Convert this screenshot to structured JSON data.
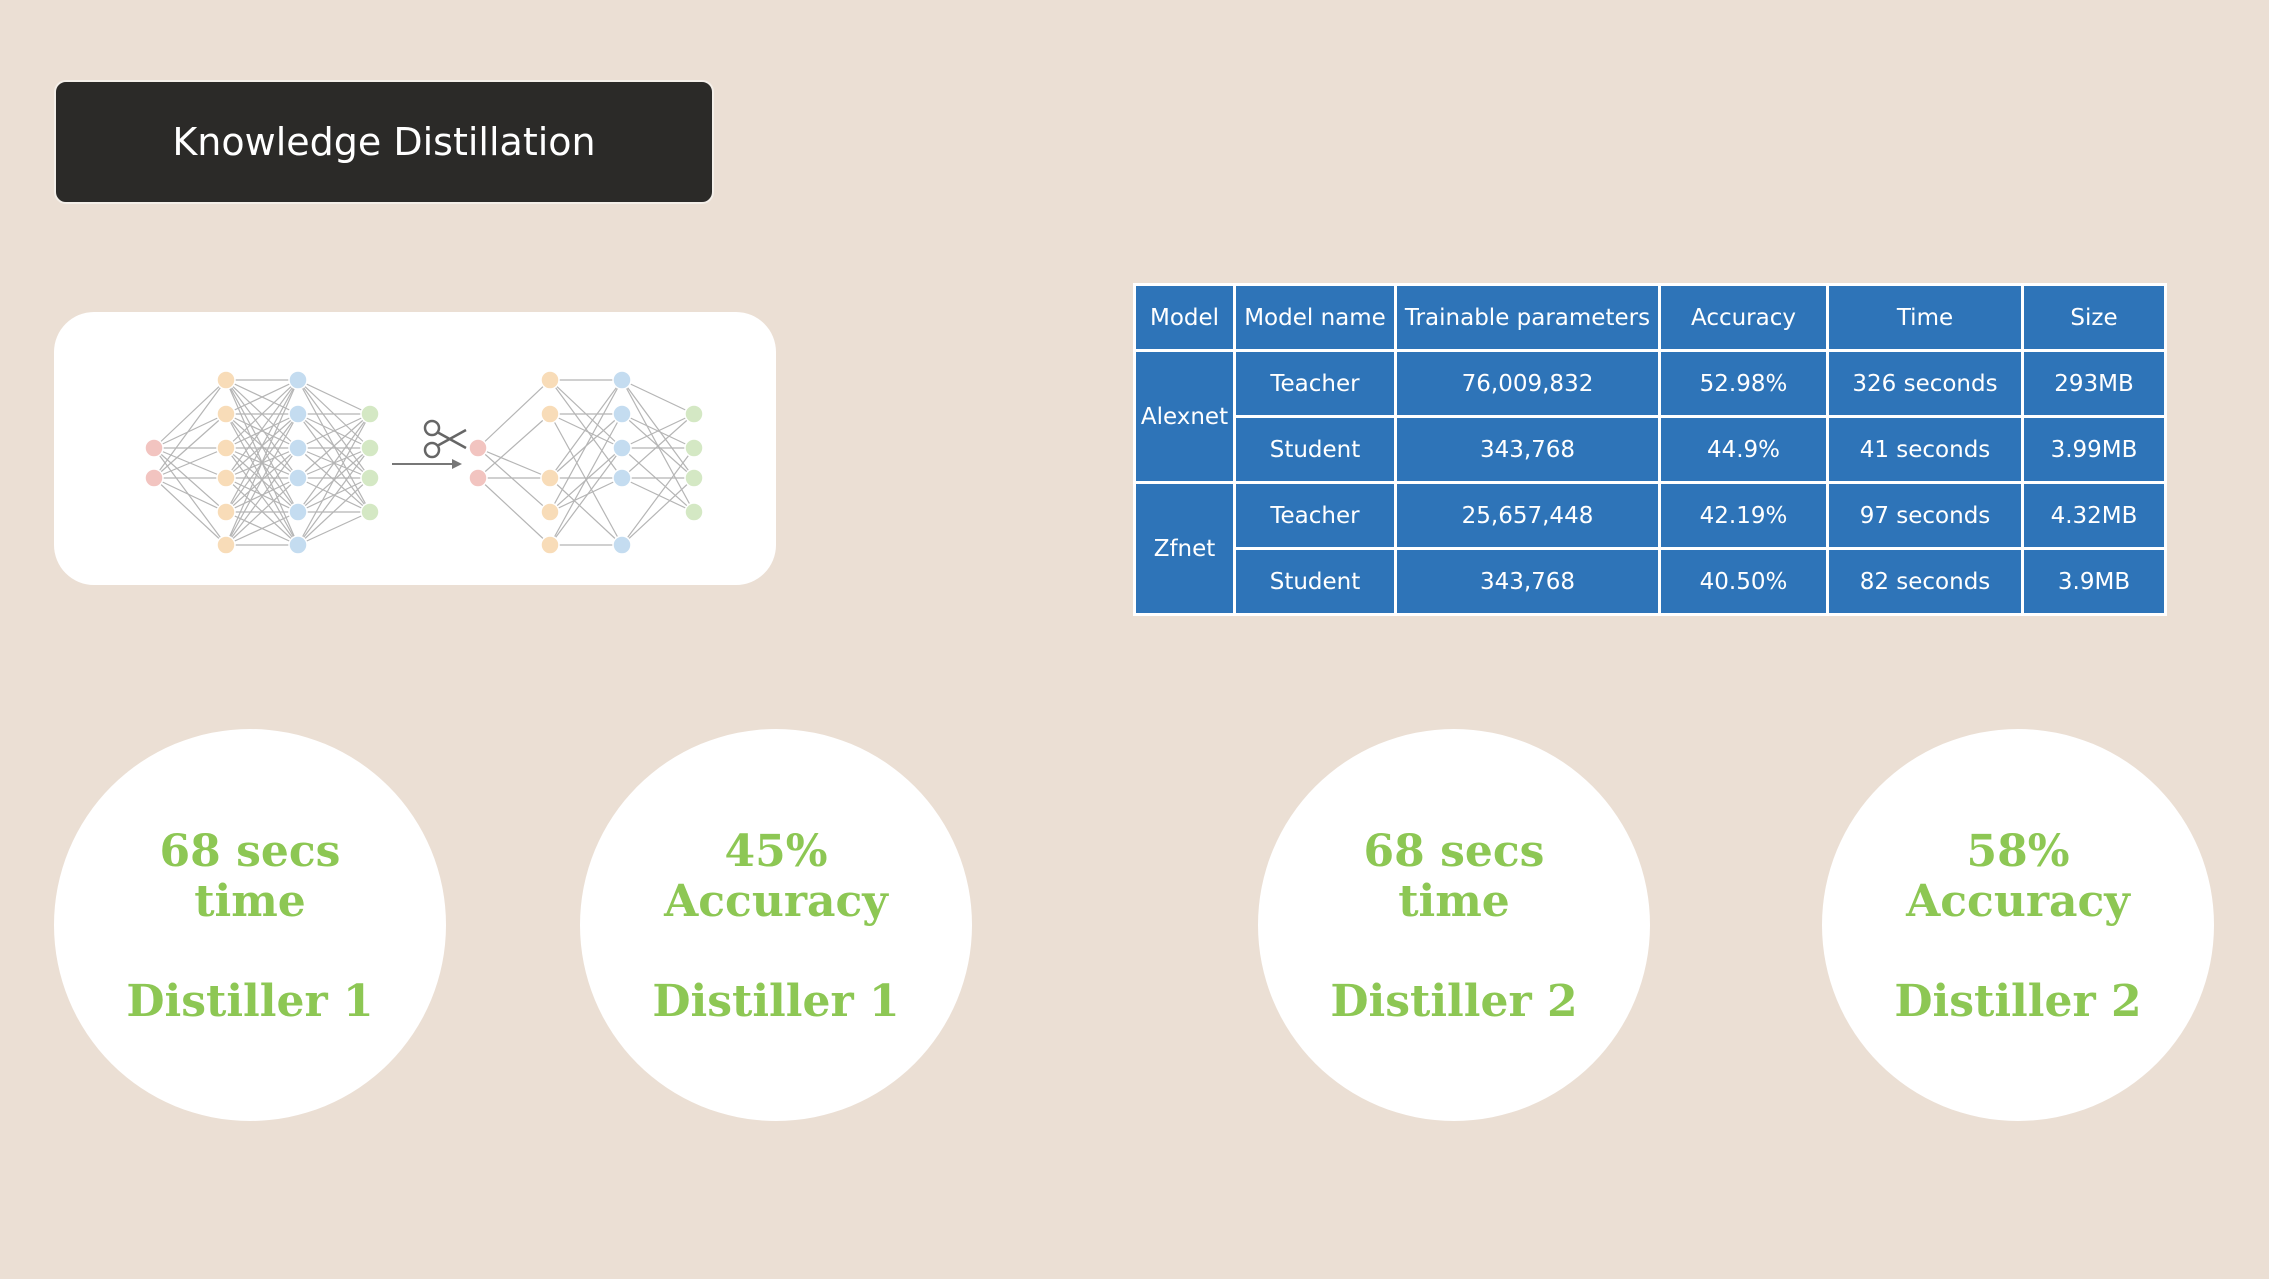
{
  "slide": {
    "title": "Knowledge Distillation"
  },
  "diagram": {
    "icon": "scissors-icon"
  },
  "table": {
    "headers": [
      "Model",
      "Model name",
      "Trainable parameters",
      "Accuracy",
      "Time",
      "Size"
    ],
    "groups": [
      {
        "model": "Alexnet",
        "rows": [
          {
            "name": "Teacher",
            "params": "76,009,832",
            "accuracy": "52.98%",
            "time": "326 seconds",
            "size": "293MB"
          },
          {
            "name": "Student",
            "params": "343,768",
            "accuracy": "44.9%",
            "time": "41 seconds",
            "size": "3.99MB"
          }
        ]
      },
      {
        "model": "Zfnet",
        "rows": [
          {
            "name": "Teacher",
            "params": "25,657,448",
            "accuracy": "42.19%",
            "time": "97 seconds",
            "size": "4.32MB"
          },
          {
            "name": "Student",
            "params": "343,768",
            "accuracy": "40.50%",
            "time": "82 seconds",
            "size": "3.9MB"
          }
        ]
      }
    ]
  },
  "circles": [
    {
      "line1": "68 secs",
      "line2": "time",
      "label": "Distiller 1"
    },
    {
      "line1": "45%",
      "line2": "Accuracy",
      "label": "Distiller 1"
    },
    {
      "line1": "68 secs",
      "line2": "time",
      "label": "Distiller 2"
    },
    {
      "line1": "58%",
      "line2": "Accuracy",
      "label": "Distiller 2"
    }
  ],
  "colors": {
    "background": "#ebdfd4",
    "title_bg": "#2b2a28",
    "table_bg": "#2e74b8",
    "circle_text": "#8dc754",
    "node_red": "#f2c4c0",
    "node_orange": "#f8dcb8",
    "node_blue": "#c4dcf0",
    "node_green": "#d4e8c4"
  }
}
